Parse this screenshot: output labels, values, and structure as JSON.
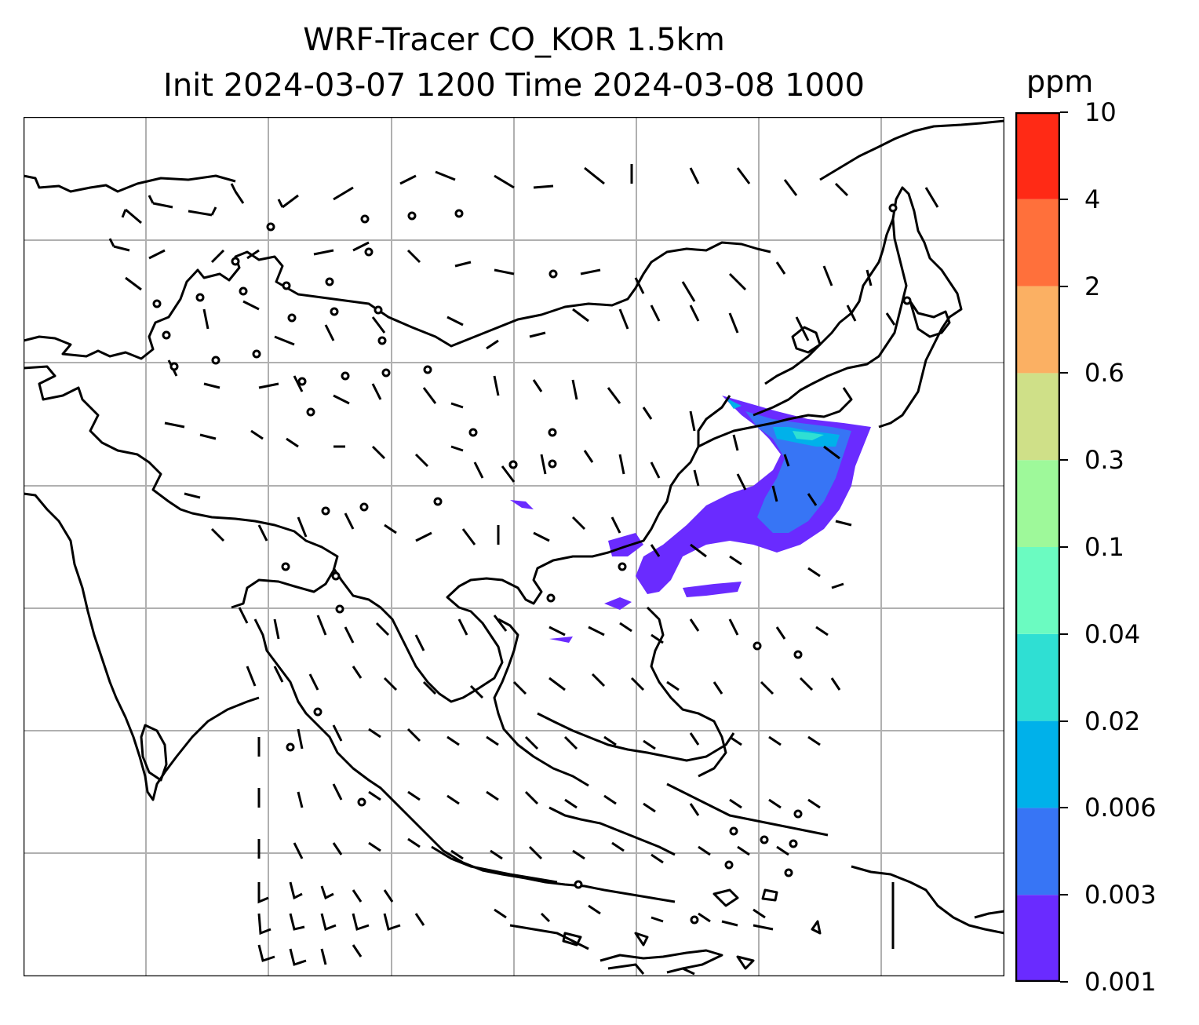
{
  "title": {
    "line1": "WRF-Tracer CO_KOR 1.5km",
    "line2": "Init 2024-03-07 1200 Time 2024-03-08 1000"
  },
  "colorbar": {
    "unit": "ppm",
    "levels": [
      "0.001",
      "0.003",
      "0.006",
      "0.02",
      "0.04",
      "0.1",
      "0.3",
      "0.6",
      "2",
      "4",
      "10"
    ],
    "colors": [
      "#6a2bff",
      "#3775f5",
      "#00b1ea",
      "#2fdfd3",
      "#6bfbc1",
      "#9ef99a",
      "#cfe088",
      "#fbb063",
      "#ff703b",
      "#ff2a15"
    ]
  },
  "map": {
    "gridlines": true,
    "grid_color": "#b0b0b0",
    "coastline_color": "#000000",
    "plume_description": "CO_KOR tracer plume over Korean peninsula extending southwest over Yellow Sea into eastern China"
  }
}
